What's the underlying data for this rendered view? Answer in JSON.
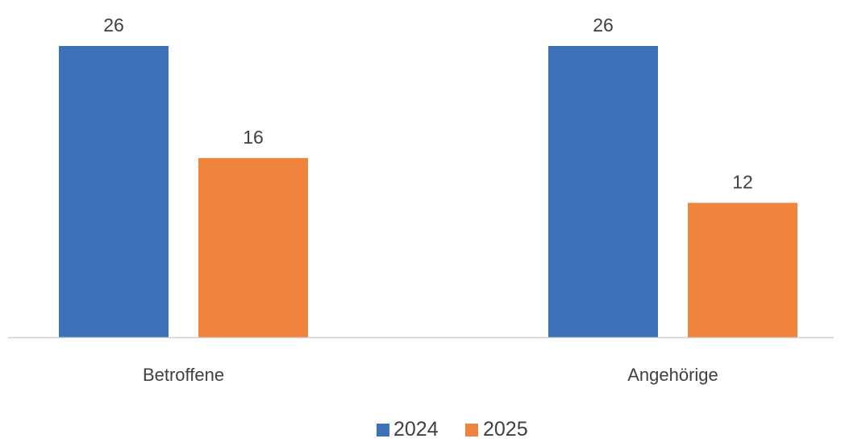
{
  "chart_data": {
    "type": "bar",
    "categories": [
      "Betroffene",
      "Angehörige"
    ],
    "series": [
      {
        "name": "2024",
        "values": [
          26,
          26
        ],
        "color": "#3d72b8"
      },
      {
        "name": "2025",
        "values": [
          16,
          12
        ],
        "color": "#f0843c"
      }
    ],
    "ylim": [
      0,
      26
    ],
    "grid": false,
    "legend_position": "bottom",
    "data_labels": true
  }
}
